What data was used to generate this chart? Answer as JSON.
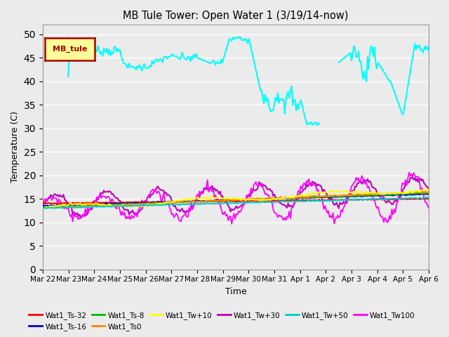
{
  "title": "MB Tule Tower: Open Water 1 (3/19/14-now)",
  "xlabel": "Time",
  "ylabel": "Temperature (C)",
  "ylim": [
    0,
    52
  ],
  "yticks": [
    0,
    5,
    10,
    15,
    20,
    25,
    30,
    35,
    40,
    45,
    50
  ],
  "bg_color": "#ebebeb",
  "legend_label": "MB_tule",
  "legend_box_color": "#ffff99",
  "legend_box_edge": "#aa0000",
  "series_colors": {
    "Wat1_Ts-32": "#ff0000",
    "Wat1_Ts-16": "#0000cc",
    "Wat1_Ts-8": "#00bb00",
    "Wat1_Ts0": "#ff8800",
    "Wat1_Tw+10": "#ffff00",
    "Wat1_Tw+30": "#bb00bb",
    "Wat1_Tw+50": "#00cccc",
    "Wat1_Tw100": "#ff00ff"
  },
  "date_labels": [
    "Mar 22",
    "Mar 23",
    "Mar 24",
    "Mar 25",
    "Mar 26",
    "Mar 27",
    "Mar 28",
    "Mar 29",
    "Mar 30",
    "Mar 31",
    "Apr 1",
    "Apr 2",
    "Apr 3",
    "Apr 4",
    "Apr 5",
    "Apr 6"
  ],
  "n_points": 336
}
